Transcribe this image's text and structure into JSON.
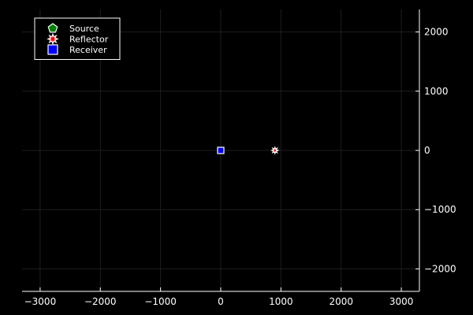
{
  "chart_data": {
    "type": "scatter",
    "title": "",
    "xlabel": "",
    "ylabel": "",
    "xlim": [
      -3300,
      3300
    ],
    "ylim": [
      -2380,
      2380
    ],
    "x_ticks": [
      -3000,
      -2000,
      -1000,
      0,
      1000,
      2000,
      3000
    ],
    "x_tick_labels": [
      "−3000",
      "−2000",
      "−1000",
      "0",
      "1000",
      "2000",
      "3000"
    ],
    "y_ticks": [
      -2000,
      -1000,
      0,
      1000,
      2000
    ],
    "y_tick_labels": [
      "−2000",
      "−1000",
      "0",
      "1000",
      "2000"
    ],
    "grid": true,
    "legend_position": "top-left",
    "series": [
      {
        "name": "Source",
        "marker": "pentagon",
        "color": "#008000",
        "points": [
          [
            0,
            0
          ]
        ]
      },
      {
        "name": "Reflector",
        "marker": "star8",
        "color": "#ff0000",
        "points": [
          [
            900,
            0
          ]
        ]
      },
      {
        "name": "Receiver",
        "marker": "square",
        "color": "#0000ff",
        "points": [
          [
            0,
            0
          ]
        ]
      }
    ],
    "colors": {
      "background": "#000000",
      "foreground": "#ffffff",
      "grid": "#1e1e1e"
    }
  }
}
